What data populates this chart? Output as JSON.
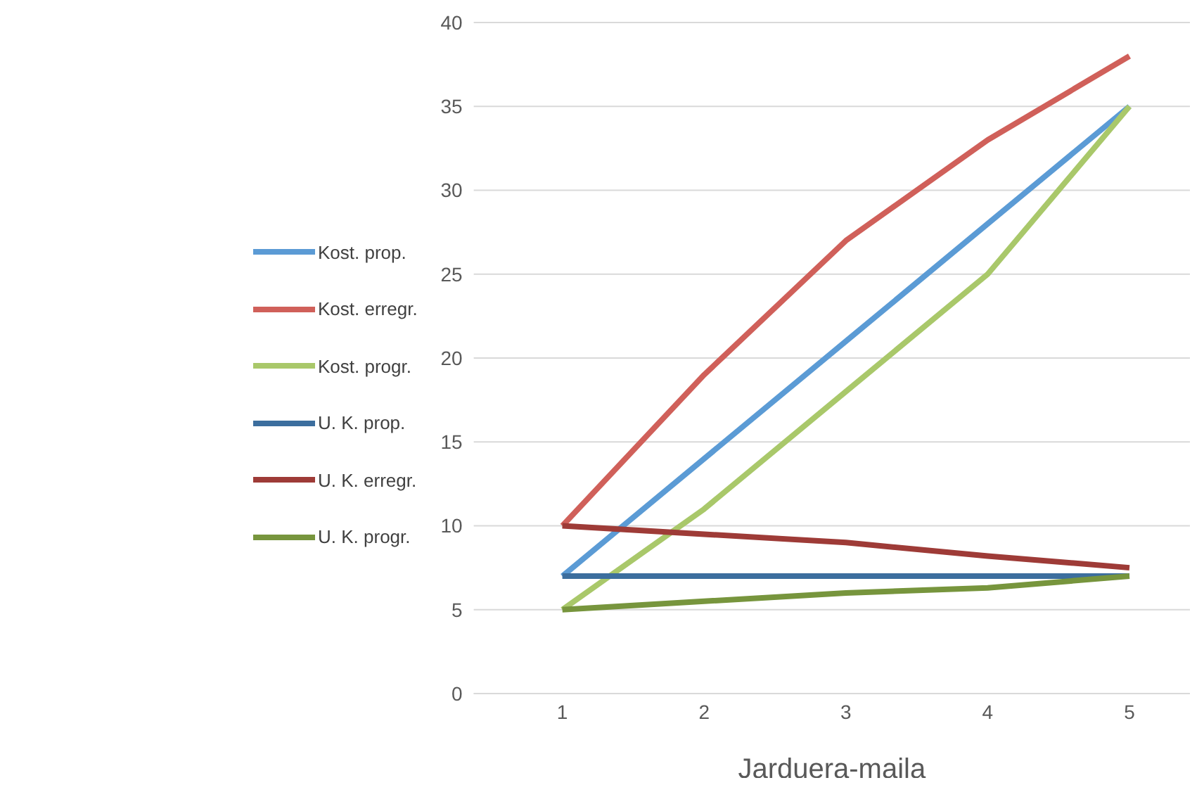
{
  "chart_data": {
    "type": "line",
    "xlabel": "Jarduera-maila",
    "categories": [
      "1",
      "2",
      "3",
      "4",
      "5"
    ],
    "series": [
      {
        "name": "Kost. prop.",
        "color": "#5b9bd5",
        "values": [
          7,
          14,
          21,
          28,
          35
        ]
      },
      {
        "name": "Kost. erregr.",
        "color": "#d0605a",
        "values": [
          10,
          19,
          27,
          33,
          38
        ]
      },
      {
        "name": "Kost. progr.",
        "color": "#a9c86a",
        "values": [
          5,
          11,
          18,
          25,
          35
        ]
      },
      {
        "name": "U. K. prop.",
        "color": "#3c6e9e",
        "values": [
          7,
          7,
          7,
          7,
          7
        ]
      },
      {
        "name": "U. K. erregr.",
        "color": "#9e3b37",
        "values": [
          10,
          9.5,
          9,
          8.2,
          7.5
        ]
      },
      {
        "name": "U. K. progr.",
        "color": "#77953d",
        "values": [
          5,
          5.5,
          6,
          6.3,
          7
        ]
      }
    ],
    "ylim": [
      0,
      40
    ],
    "yticks": [
      0,
      5,
      10,
      15,
      20,
      25,
      30,
      35,
      40
    ],
    "grid": "y",
    "legend": "left",
    "marker": "none",
    "line_style": "solid"
  }
}
